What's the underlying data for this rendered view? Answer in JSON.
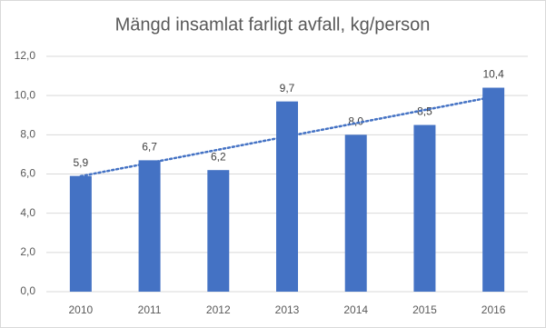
{
  "chart_data": {
    "type": "bar",
    "title": "Mängd insamlat farligt avfall, kg/person",
    "categories": [
      "2010",
      "2011",
      "2012",
      "2013",
      "2014",
      "2015",
      "2016"
    ],
    "values": [
      5.9,
      6.7,
      6.2,
      9.7,
      8.0,
      8.5,
      10.4
    ],
    "value_labels": [
      "5,9",
      "6,7",
      "6,2",
      "9,7",
      "8,0",
      "8,5",
      "10,4"
    ],
    "color": "#4472c4",
    "ylim": [
      0,
      12
    ],
    "yticks": [
      {
        "value": 0,
        "label": "0,0"
      },
      {
        "value": 2,
        "label": "2,0"
      },
      {
        "value": 4,
        "label": "4,0"
      },
      {
        "value": 6,
        "label": "6,0"
      },
      {
        "value": 8,
        "label": "8,0"
      },
      {
        "value": 10,
        "label": "10,0"
      },
      {
        "value": 12,
        "label": "12,0"
      }
    ],
    "grid": true,
    "trendline": "linear"
  }
}
